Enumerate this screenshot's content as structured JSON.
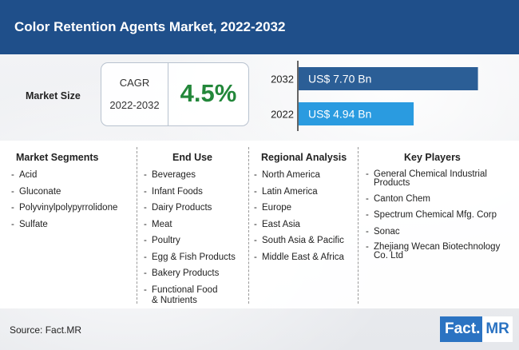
{
  "title": "Color Retention Agents Market, 2022-2032",
  "market_size_label": "Market Size",
  "cagr": {
    "label": "CAGR",
    "period": "2022-2032",
    "value": "4.5%"
  },
  "chart_data": {
    "type": "bar",
    "orientation": "horizontal",
    "categories": [
      "2032",
      "2022"
    ],
    "values": [
      7.7,
      4.94
    ],
    "value_labels": [
      "US$ 7.70 Bn",
      "US$ 4.94 Bn"
    ],
    "colors": [
      "#2b5e96",
      "#2a9be0"
    ],
    "xlim": [
      0,
      8.4
    ]
  },
  "columns": [
    {
      "title": "Market Segments",
      "items": [
        "Acid",
        "Gluconate",
        "Polyvinylpolypyrrolidone",
        "Sulfate"
      ]
    },
    {
      "title": "End Use",
      "items": [
        "Beverages",
        "Infant Foods",
        "Dairy Products",
        "Meat",
        "Poultry",
        "Egg & Fish Products",
        "Bakery Products",
        "Functional Food\n& Nutrients"
      ]
    },
    {
      "title": "Regional Analysis",
      "items": [
        "North America",
        "Latin America",
        "Europe",
        "East Asia",
        "South Asia & Pacific",
        "Middle East & Africa"
      ]
    },
    {
      "title": "Key Players",
      "items": [
        "General Chemical Industrial\nProducts",
        "Canton Chem",
        "Spectrum Chemical Mfg. Corp",
        "Sonac",
        "Zhejiang Wecan Biotechnology\nCo. Ltd"
      ]
    }
  ],
  "source": "Source: Fact.MR",
  "logo": {
    "part1": "Fact.",
    "part2": "MR"
  }
}
